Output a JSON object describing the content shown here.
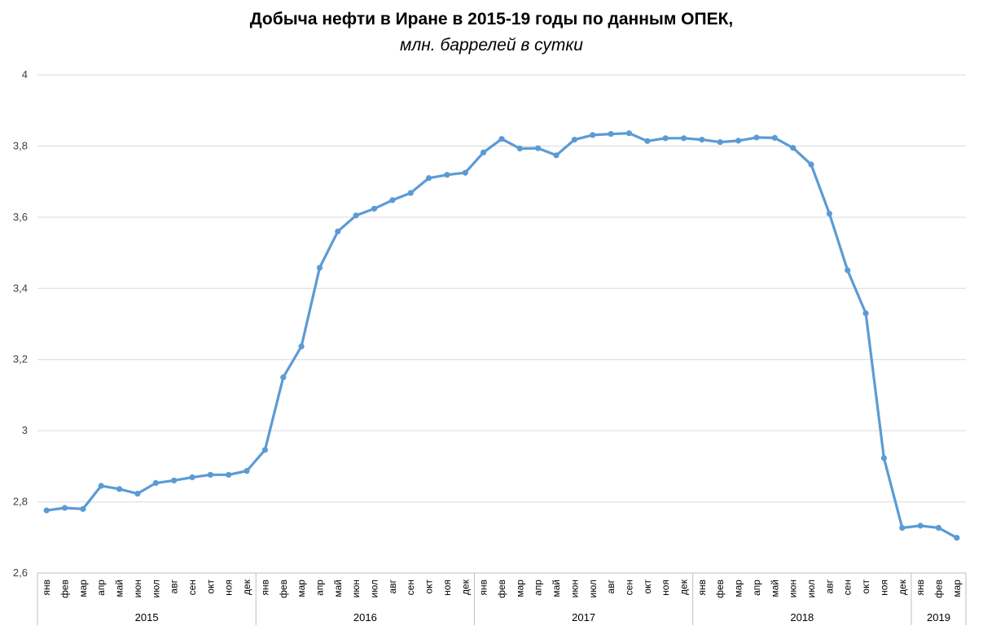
{
  "chart_data": {
    "type": "line",
    "title": "Добыча нефти в Иране в 2015-19 годы по данным ОПЕК,",
    "subtitle": "млн. баррелей в сутки",
    "ylim": [
      2.6,
      4.0
    ],
    "yticks": [
      "2,6",
      "2,8",
      "3",
      "3,2",
      "3,4",
      "3,6",
      "3,8",
      "4"
    ],
    "grid": true,
    "line_color": "#5B9BD5",
    "years": [
      {
        "label": "2015",
        "months": 12
      },
      {
        "label": "2016",
        "months": 12
      },
      {
        "label": "2017",
        "months": 12
      },
      {
        "label": "2018",
        "months": 12
      },
      {
        "label": "2019",
        "months": 3
      }
    ],
    "x": [
      "янв",
      "фев",
      "мар",
      "апр",
      "май",
      "июн",
      "июл",
      "авг",
      "сен",
      "окт",
      "ноя",
      "дек",
      "янв",
      "фев",
      "мар",
      "апр",
      "май",
      "июн",
      "июл",
      "авг",
      "сен",
      "окт",
      "ноя",
      "дек",
      "янв",
      "фев",
      "мар",
      "апр",
      "май",
      "июн",
      "июл",
      "авг",
      "сен",
      "окт",
      "ноя",
      "дек",
      "янв",
      "фев",
      "мар",
      "апр",
      "май",
      "июн",
      "июл",
      "авг",
      "сен",
      "окт",
      "ноя",
      "дек",
      "янв",
      "фев",
      "мар"
    ],
    "values": [
      2.776,
      2.783,
      2.78,
      2.845,
      2.836,
      2.823,
      2.853,
      2.86,
      2.869,
      2.876,
      2.876,
      2.887,
      2.946,
      3.15,
      3.237,
      3.458,
      3.56,
      3.605,
      3.624,
      3.648,
      3.668,
      3.71,
      3.719,
      3.725,
      3.782,
      3.82,
      3.793,
      3.794,
      3.774,
      3.818,
      3.831,
      3.834,
      3.836,
      3.814,
      3.822,
      3.822,
      3.818,
      3.811,
      3.815,
      3.824,
      3.823,
      3.795,
      3.748,
      3.61,
      3.451,
      3.33,
      2.923,
      2.727,
      2.733,
      2.727,
      2.699
    ]
  }
}
